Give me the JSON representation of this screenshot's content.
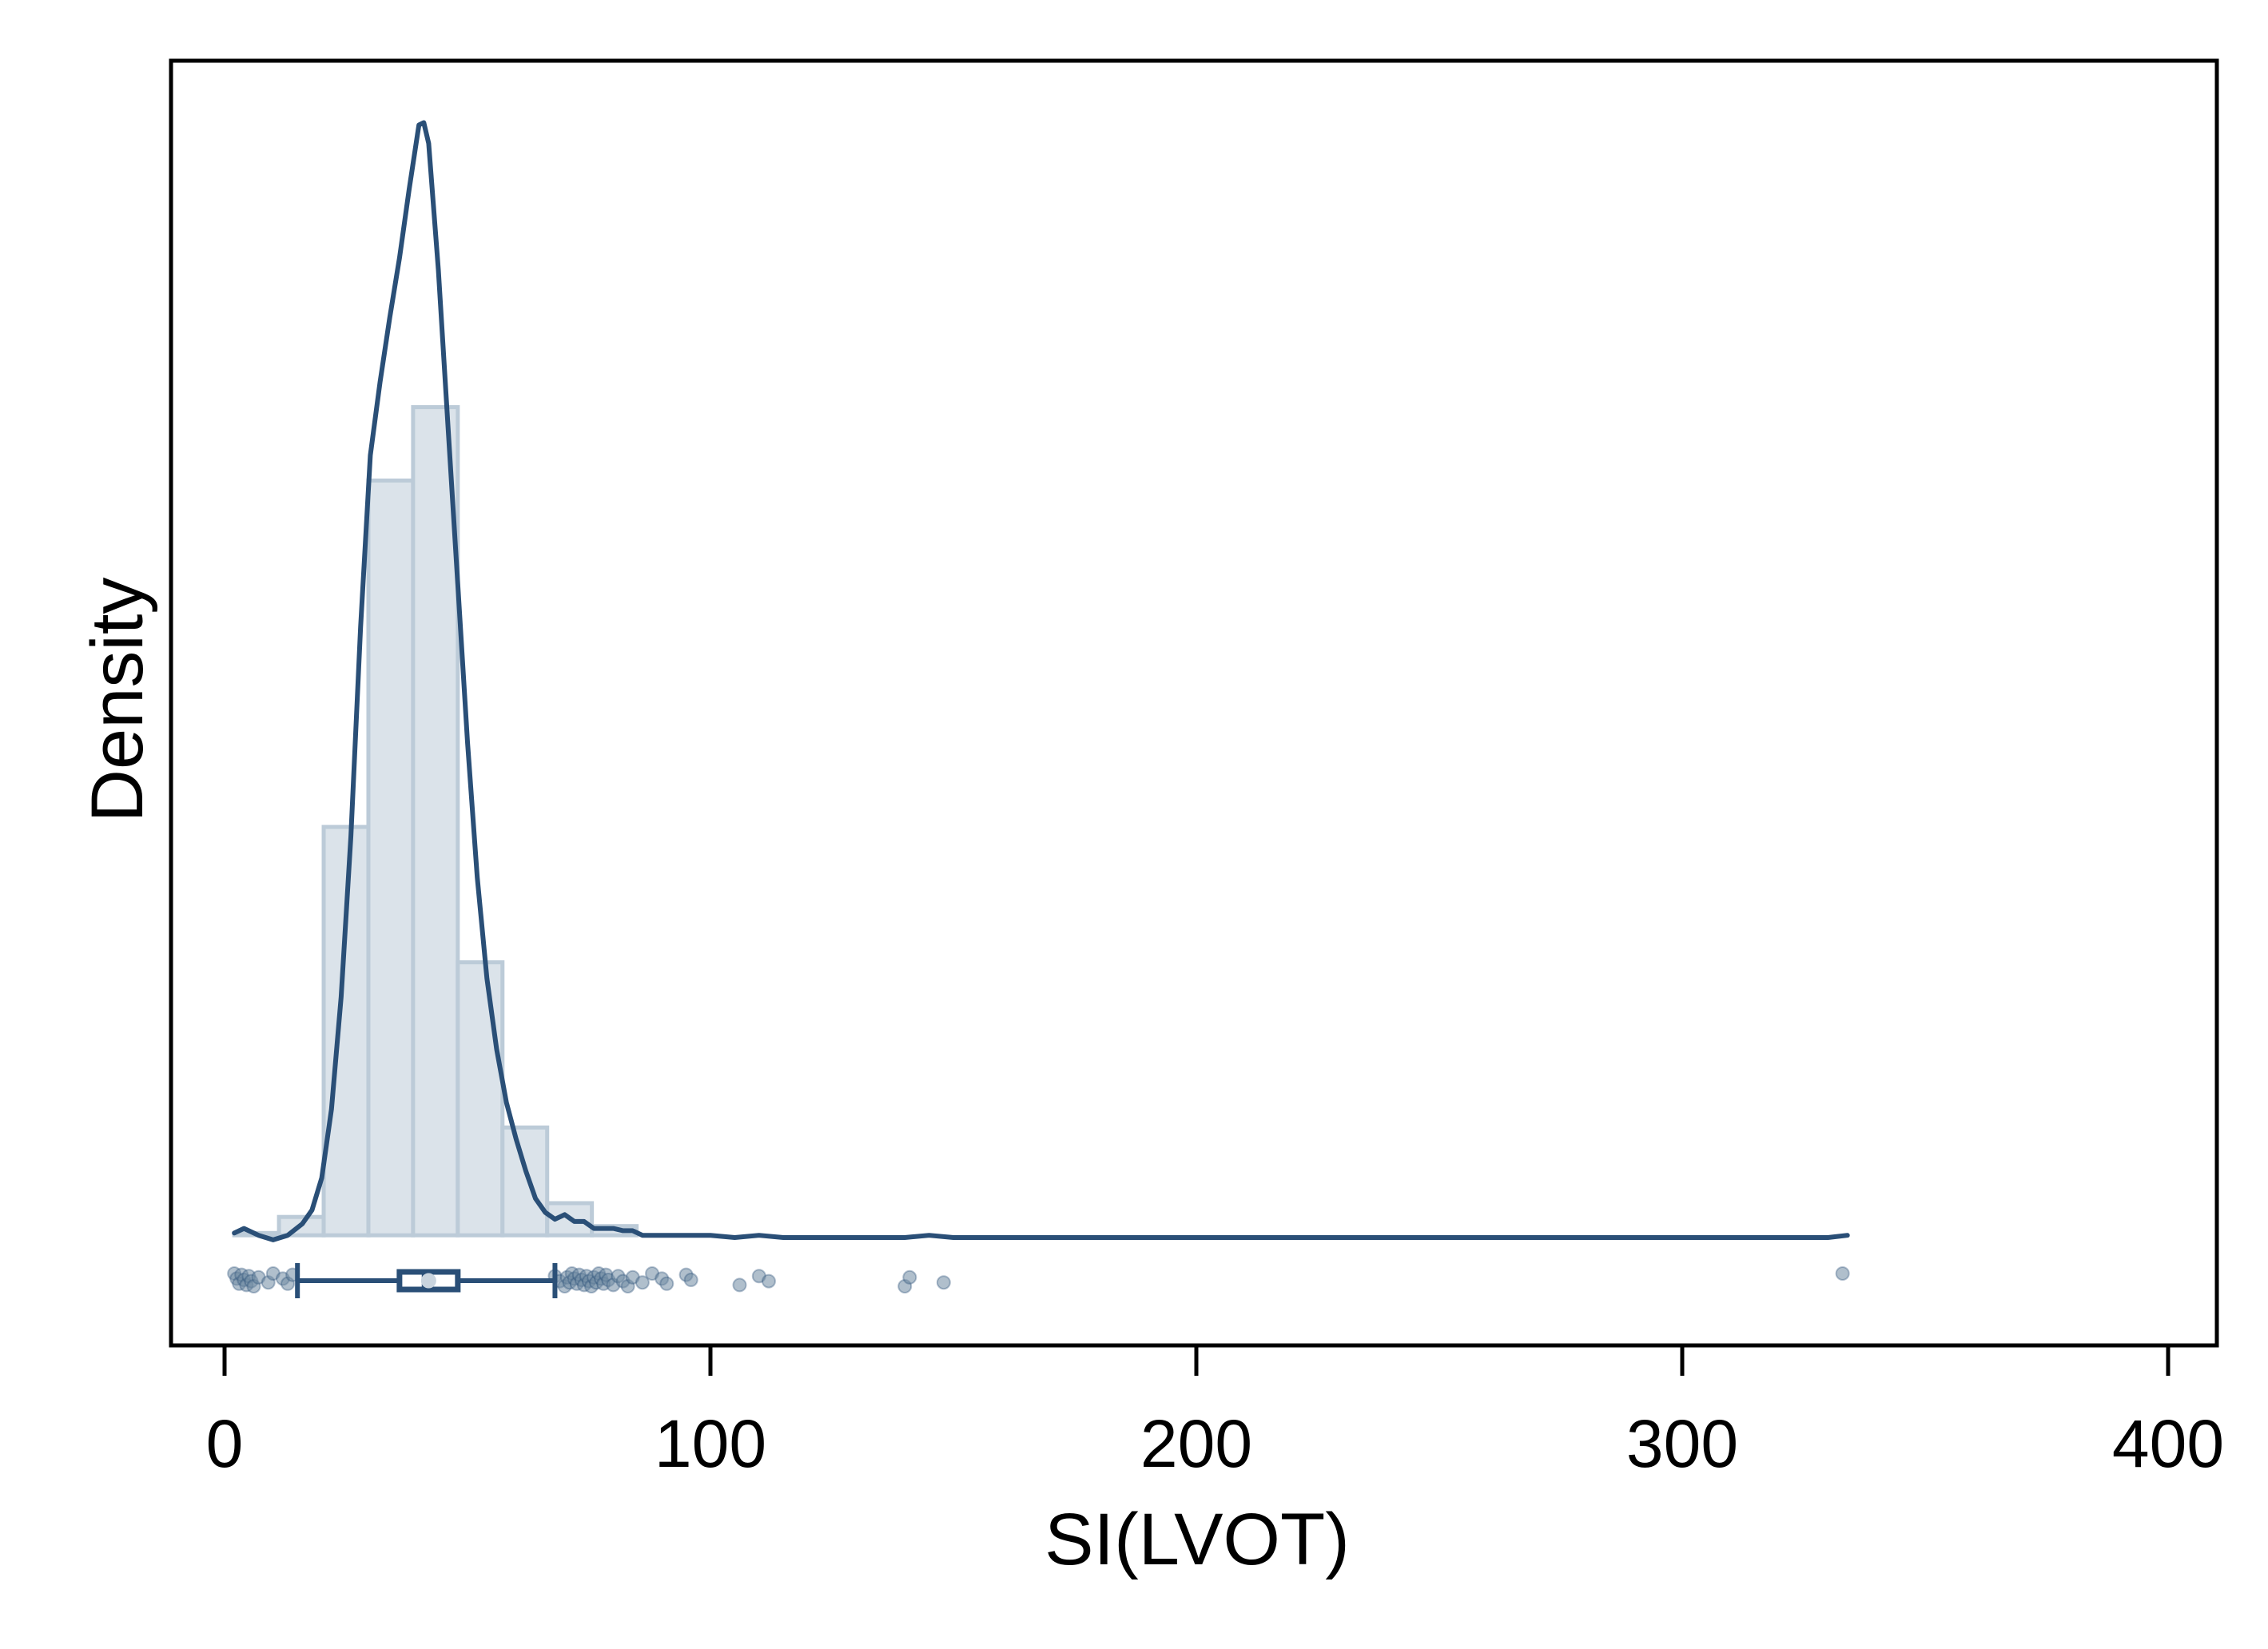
{
  "chart_data": {
    "type": "histogram",
    "title": "",
    "xlabel": "SI(LVOT)",
    "ylabel": "Density",
    "xlim": [
      -11,
      411
    ],
    "xticks": [
      0,
      100,
      200,
      300,
      400
    ],
    "xtick_labels": [
      "0",
      "100",
      "200",
      "300",
      "400"
    ],
    "yticks_shown": false,
    "grid": false,
    "legend": "none",
    "colors": {
      "bar_fill": "#dbe3ea",
      "bar_stroke": "#bccbd8",
      "line": "#2a4f77",
      "points": "#6f8ba3",
      "axis": "#000000"
    },
    "histogram": {
      "bin_width": 9.2,
      "bins": [
        {
          "start": 2.0,
          "end": 11.2,
          "density": 0.0001
        },
        {
          "start": 11.2,
          "end": 20.4,
          "density": 0.0008
        },
        {
          "start": 20.4,
          "end": 29.6,
          "density": 0.0178
        },
        {
          "start": 29.6,
          "end": 38.8,
          "density": 0.0329
        },
        {
          "start": 38.8,
          "end": 48.0,
          "density": 0.0361
        },
        {
          "start": 48.0,
          "end": 57.2,
          "density": 0.0119
        },
        {
          "start": 57.2,
          "end": 66.4,
          "density": 0.0047
        },
        {
          "start": 66.4,
          "end": 75.6,
          "density": 0.0014
        },
        {
          "start": 75.6,
          "end": 84.8,
          "density": 0.0004
        }
      ]
    },
    "density_curve": {
      "x": [
        2,
        4,
        7,
        10,
        13,
        16,
        18,
        20,
        22,
        24,
        26,
        28,
        30,
        32,
        34,
        36,
        38,
        40,
        41,
        42,
        44,
        46,
        48,
        50,
        52,
        54,
        56,
        58,
        60,
        62,
        64,
        66,
        68,
        70,
        72,
        74,
        76,
        78,
        80,
        82,
        84,
        86,
        88,
        90,
        95,
        100,
        105,
        110,
        115,
        130,
        140,
        145,
        150,
        200,
        250,
        300,
        320,
        325,
        330,
        334
      ],
      "y": [
        0.0001,
        0.0003,
        0.0,
        -0.0002,
        0.0,
        0.0005,
        0.0011,
        0.0025,
        0.0055,
        0.0104,
        0.0174,
        0.0265,
        0.034,
        0.0372,
        0.04,
        0.0426,
        0.0456,
        0.0484,
        0.0485,
        0.0476,
        0.0421,
        0.0352,
        0.0284,
        0.0215,
        0.0156,
        0.0112,
        0.0081,
        0.0058,
        0.0042,
        0.0028,
        0.0016,
        0.001,
        0.0007,
        0.0009,
        0.0006,
        0.0006,
        0.0003,
        0.0003,
        0.0003,
        0.0002,
        0.0002,
        0.0,
        0.0,
        0.0,
        0.0,
        0.0,
        -0.0001,
        0.0,
        -0.0001,
        -0.0001,
        -0.0001,
        0.0,
        -0.0001,
        -0.0001,
        -0.0001,
        -0.0001,
        -0.0001,
        -0.0001,
        -0.0001,
        0.0
      ]
    },
    "ylim": [
      -0.0048,
      0.0512
    ],
    "boxplot": {
      "whisker_low": 15,
      "q1": 36,
      "median": 41,
      "q3": 48,
      "whisker_high": 68,
      "mean": 42
    },
    "points": [
      2,
      2.5,
      3,
      3.5,
      4,
      4.5,
      5,
      5.5,
      6,
      7,
      9,
      10,
      12,
      13,
      14,
      40,
      41,
      68,
      69,
      70,
      70.5,
      71,
      71.5,
      72,
      72.5,
      73,
      73.5,
      74,
      74.5,
      75,
      75.5,
      76,
      76.5,
      77,
      77.5,
      78,
      78.5,
      79,
      80,
      81,
      82,
      83,
      84,
      86,
      88,
      90,
      91,
      95,
      96,
      106,
      110,
      112,
      140,
      141,
      148,
      333
    ]
  }
}
